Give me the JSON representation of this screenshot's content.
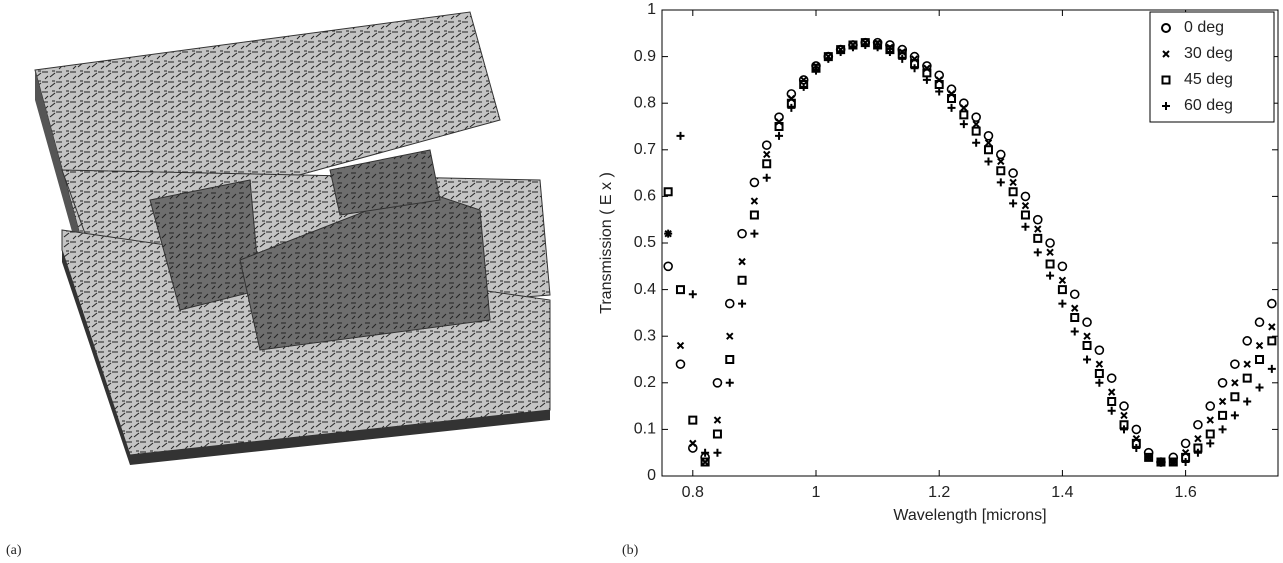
{
  "chart_data": {
    "type": "scatter",
    "panel_labels": [
      "(a)",
      "(b)"
    ],
    "xlabel": "Wavelength [microns]",
    "ylabel": "Transmission ( E x )",
    "xlim": [
      0.75,
      1.75
    ],
    "ylim": [
      0,
      1
    ],
    "xticks": [
      0.8,
      1,
      1.2,
      1.4,
      1.6
    ],
    "yticks": [
      0,
      0.1,
      0.2,
      0.3,
      0.4,
      0.5,
      0.6,
      0.7,
      0.8,
      0.9,
      1
    ],
    "legend": "upper right",
    "x": [
      0.76,
      0.78,
      0.8,
      0.82,
      0.84,
      0.86,
      0.88,
      0.9,
      0.92,
      0.94,
      0.96,
      0.98,
      1.0,
      1.02,
      1.04,
      1.06,
      1.08,
      1.1,
      1.12,
      1.14,
      1.16,
      1.18,
      1.2,
      1.22,
      1.24,
      1.26,
      1.28,
      1.3,
      1.32,
      1.34,
      1.36,
      1.38,
      1.4,
      1.42,
      1.44,
      1.46,
      1.48,
      1.5,
      1.52,
      1.54,
      1.56,
      1.58,
      1.6,
      1.62,
      1.64,
      1.66,
      1.68,
      1.7,
      1.72,
      1.74
    ],
    "series": [
      {
        "name": "0 deg",
        "marker": "circle",
        "color": "#000000",
        "values": [
          0.45,
          0.24,
          0.06,
          0.04,
          0.2,
          0.37,
          0.52,
          0.63,
          0.71,
          0.77,
          0.82,
          0.85,
          0.88,
          0.9,
          0.915,
          0.925,
          0.93,
          0.93,
          0.925,
          0.915,
          0.9,
          0.88,
          0.86,
          0.83,
          0.8,
          0.77,
          0.73,
          0.69,
          0.65,
          0.6,
          0.55,
          0.5,
          0.45,
          0.39,
          0.33,
          0.27,
          0.21,
          0.15,
          0.1,
          0.05,
          0.03,
          0.04,
          0.07,
          0.11,
          0.15,
          0.2,
          0.24,
          0.29,
          0.33,
          0.37
        ]
      },
      {
        "name": "30 deg",
        "marker": "x",
        "color": "#000000",
        "values": [
          0.52,
          0.28,
          0.07,
          0.03,
          0.12,
          0.3,
          0.46,
          0.59,
          0.69,
          0.76,
          0.81,
          0.85,
          0.88,
          0.9,
          0.915,
          0.925,
          0.93,
          0.93,
          0.92,
          0.91,
          0.895,
          0.875,
          0.85,
          0.82,
          0.79,
          0.755,
          0.715,
          0.675,
          0.63,
          0.58,
          0.53,
          0.48,
          0.42,
          0.36,
          0.3,
          0.24,
          0.18,
          0.13,
          0.08,
          0.04,
          0.03,
          0.03,
          0.05,
          0.08,
          0.12,
          0.16,
          0.2,
          0.24,
          0.28,
          0.32
        ]
      },
      {
        "name": "45 deg",
        "marker": "square",
        "color": "#000000",
        "values": [
          0.61,
          0.4,
          0.12,
          0.03,
          0.09,
          0.25,
          0.42,
          0.56,
          0.67,
          0.75,
          0.8,
          0.84,
          0.875,
          0.9,
          0.915,
          0.925,
          0.93,
          0.925,
          0.915,
          0.905,
          0.885,
          0.865,
          0.84,
          0.81,
          0.775,
          0.74,
          0.7,
          0.655,
          0.61,
          0.56,
          0.51,
          0.455,
          0.4,
          0.34,
          0.28,
          0.22,
          0.16,
          0.11,
          0.07,
          0.04,
          0.03,
          0.03,
          0.04,
          0.06,
          0.09,
          0.13,
          0.17,
          0.21,
          0.25,
          0.29
        ]
      },
      {
        "name": "60 deg",
        "marker": "plus",
        "color": "#000000",
        "values": [
          0.52,
          0.73,
          0.39,
          0.05,
          0.05,
          0.2,
          0.37,
          0.52,
          0.64,
          0.73,
          0.79,
          0.835,
          0.87,
          0.895,
          0.91,
          0.92,
          0.925,
          0.92,
          0.91,
          0.895,
          0.875,
          0.85,
          0.825,
          0.79,
          0.755,
          0.715,
          0.675,
          0.63,
          0.585,
          0.535,
          0.48,
          0.43,
          0.37,
          0.31,
          0.25,
          0.2,
          0.14,
          0.1,
          0.06,
          0.04,
          0.03,
          0.03,
          0.03,
          0.05,
          0.07,
          0.1,
          0.13,
          0.16,
          0.19,
          0.23
        ]
      }
    ]
  }
}
